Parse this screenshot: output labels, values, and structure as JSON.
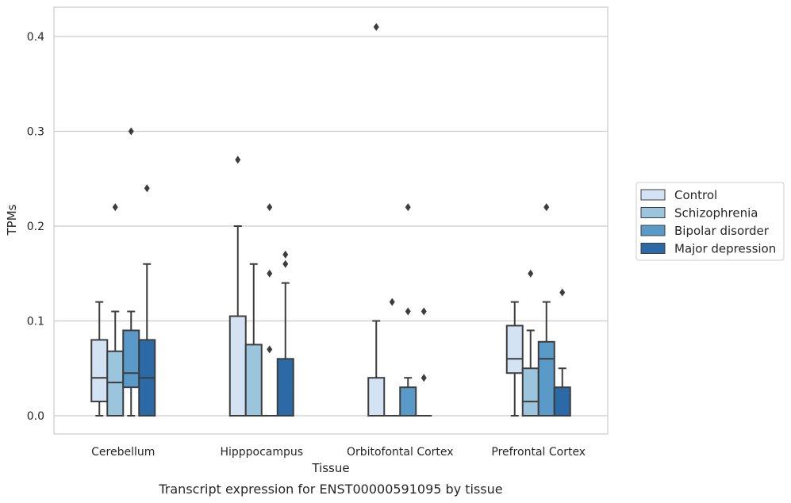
{
  "caption": "Transcript expression for ENST00000591095 by tissue",
  "chart_data": {
    "type": "boxplot",
    "title": "",
    "xlabel": "Tissue",
    "ylabel": "TPMs",
    "ylim": [
      -0.02,
      0.43
    ],
    "yticks": [
      0.0,
      0.1,
      0.2,
      0.3,
      0.4
    ],
    "ytick_labels": [
      "0.0",
      "0.1",
      "0.2",
      "0.3",
      "0.4"
    ],
    "grid": "horizontal",
    "legend_position": "right",
    "categories": [
      "Cerebellum",
      "Hipppocampus",
      "Orbitofontal Cortex",
      "Prefrontal Cortex"
    ],
    "series": [
      {
        "name": "Control",
        "color": "#d4e3f3",
        "boxes": [
          {
            "whisker_low": 0.0,
            "q1": 0.015,
            "median": 0.04,
            "q3": 0.08,
            "whisker_high": 0.12,
            "outliers": []
          },
          {
            "whisker_low": 0.0,
            "q1": 0.0,
            "median": 0.0,
            "q3": 0.105,
            "whisker_high": 0.2,
            "outliers": [
              0.27
            ]
          },
          {
            "whisker_low": 0.0,
            "q1": 0.0,
            "median": 0.0,
            "q3": 0.04,
            "whisker_high": 0.1,
            "outliers": [
              0.41
            ]
          },
          {
            "whisker_low": 0.0,
            "q1": 0.045,
            "median": 0.06,
            "q3": 0.095,
            "whisker_high": 0.12,
            "outliers": []
          }
        ]
      },
      {
        "name": "Schizophrenia",
        "color": "#9bc4dd",
        "boxes": [
          {
            "whisker_low": 0.0,
            "q1": 0.0,
            "median": 0.035,
            "q3": 0.068,
            "whisker_high": 0.11,
            "outliers": [
              0.22
            ]
          },
          {
            "whisker_low": 0.0,
            "q1": 0.0,
            "median": 0.0,
            "q3": 0.075,
            "whisker_high": 0.16,
            "outliers": []
          },
          {
            "whisker_low": 0.0,
            "q1": 0.0,
            "median": 0.0,
            "q3": 0.0,
            "whisker_high": 0.0,
            "outliers": [
              0.12
            ]
          },
          {
            "whisker_low": 0.0,
            "q1": 0.0,
            "median": 0.015,
            "q3": 0.05,
            "whisker_high": 0.09,
            "outliers": [
              0.15
            ]
          }
        ]
      },
      {
        "name": "Bipolar disorder",
        "color": "#5a9ac8",
        "boxes": [
          {
            "whisker_low": 0.0,
            "q1": 0.03,
            "median": 0.045,
            "q3": 0.09,
            "whisker_high": 0.11,
            "outliers": [
              0.3
            ]
          },
          {
            "whisker_low": 0.0,
            "q1": 0.0,
            "median": 0.0,
            "q3": 0.0,
            "whisker_high": 0.0,
            "outliers": [
              0.07,
              0.15,
              0.22
            ]
          },
          {
            "whisker_low": 0.0,
            "q1": 0.0,
            "median": 0.0,
            "q3": 0.03,
            "whisker_high": 0.04,
            "outliers": [
              0.11,
              0.22
            ]
          },
          {
            "whisker_low": 0.0,
            "q1": 0.0,
            "median": 0.06,
            "q3": 0.078,
            "whisker_high": 0.12,
            "outliers": [
              0.22
            ]
          }
        ]
      },
      {
        "name": "Major depression",
        "color": "#2b6aa6",
        "boxes": [
          {
            "whisker_low": 0.0,
            "q1": 0.0,
            "median": 0.04,
            "q3": 0.08,
            "whisker_high": 0.16,
            "outliers": [
              0.24
            ]
          },
          {
            "whisker_low": 0.0,
            "q1": 0.0,
            "median": 0.0,
            "q3": 0.06,
            "whisker_high": 0.14,
            "outliers": [
              0.16,
              0.17
            ]
          },
          {
            "whisker_low": 0.0,
            "q1": 0.0,
            "median": 0.0,
            "q3": 0.0,
            "whisker_high": 0.0,
            "outliers": [
              0.04,
              0.11
            ]
          },
          {
            "whisker_low": 0.0,
            "q1": 0.0,
            "median": 0.0,
            "q3": 0.03,
            "whisker_high": 0.05,
            "outliers": [
              0.13
            ]
          }
        ]
      }
    ]
  }
}
